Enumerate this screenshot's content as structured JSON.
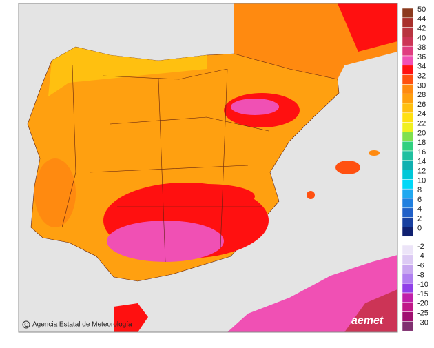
{
  "legend": {
    "warm": [
      {
        "label": 50,
        "color": "#8b3a1e"
      },
      {
        "label": 44,
        "color": "#a8302c"
      },
      {
        "label": 42,
        "color": "#b83440"
      },
      {
        "label": 40,
        "color": "#cc3456"
      },
      {
        "label": 38,
        "color": "#e03c80"
      },
      {
        "label": 36,
        "color": "#f050b4"
      },
      {
        "label": 34,
        "color": "#ff1010"
      },
      {
        "label": 32,
        "color": "#ff5010"
      },
      {
        "label": 30,
        "color": "#ff8a10"
      },
      {
        "label": 28,
        "color": "#ffa010"
      },
      {
        "label": 26,
        "color": "#ffc010"
      },
      {
        "label": 24,
        "color": "#ffe010"
      },
      {
        "label": 22,
        "color": "#f0f020"
      },
      {
        "label": 20,
        "color": "#80e050"
      },
      {
        "label": 18,
        "color": "#30d080"
      },
      {
        "label": 16,
        "color": "#20c0a0"
      },
      {
        "label": 14,
        "color": "#10b0b0"
      },
      {
        "label": 12,
        "color": "#00c8d8"
      },
      {
        "label": 10,
        "color": "#00d8f8"
      },
      {
        "label": 8,
        "color": "#20a8f0"
      },
      {
        "label": 6,
        "color": "#2080e0"
      },
      {
        "label": 4,
        "color": "#2060c8"
      },
      {
        "label": 2,
        "color": "#1840a0"
      },
      {
        "label": 0,
        "color": "#102070"
      }
    ],
    "cold": [
      {
        "label": -2,
        "color": "#ece4f8"
      },
      {
        "label": -4,
        "color": "#dccaf4"
      },
      {
        "label": -6,
        "color": "#c8a8f0"
      },
      {
        "label": -8,
        "color": "#b080f0"
      },
      {
        "label": -10,
        "color": "#9040e8"
      },
      {
        "label": -15,
        "color": "#c020a8"
      },
      {
        "label": -20,
        "color": "#c01888"
      },
      {
        "label": -25,
        "color": "#a01070"
      },
      {
        "label": -30,
        "color": "#803070"
      }
    ]
  },
  "footer": {
    "credit": "Agencia Estatal de Meteorología",
    "logo": "aemet"
  }
}
